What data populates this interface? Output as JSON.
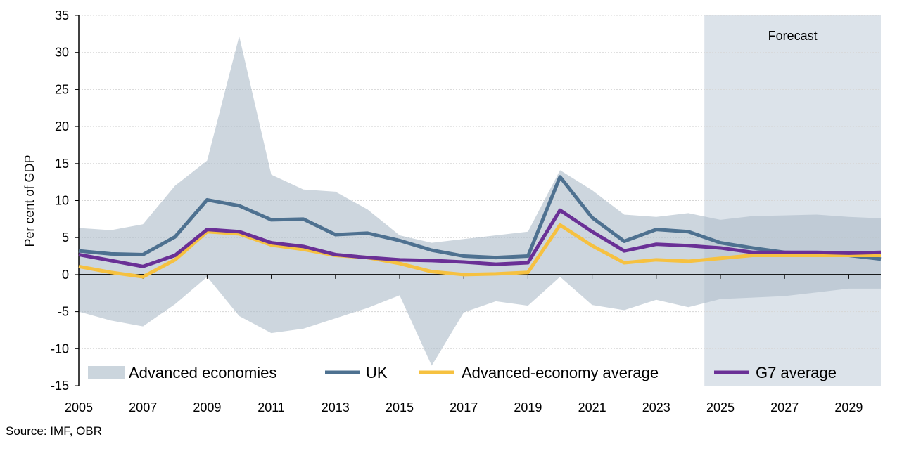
{
  "chart_data": {
    "type": "line",
    "title": "",
    "xlabel": "",
    "ylabel": "Per cent of GDP",
    "ylim": [
      -15,
      35
    ],
    "yticks": [
      35,
      30,
      25,
      20,
      15,
      10,
      5,
      0,
      -5,
      -10,
      -15
    ],
    "xticks": [
      "2005",
      "2007",
      "2009",
      "2011",
      "2013",
      "2015",
      "2017",
      "2019",
      "2021",
      "2023",
      "2025",
      "2027",
      "2029"
    ],
    "x": [
      2005,
      2006,
      2007,
      2008,
      2009,
      2010,
      2011,
      2012,
      2013,
      2014,
      2015,
      2016,
      2017,
      2018,
      2019,
      2020,
      2021,
      2022,
      2023,
      2024,
      2025,
      2026,
      2027,
      2028,
      2029,
      2030
    ],
    "forecast": {
      "label": "Forecast",
      "start": 2024.5,
      "end": 2030
    },
    "band": {
      "name": "Advanced economies",
      "color": "#cbd5dd",
      "upper": [
        6.3,
        6.0,
        6.8,
        12.0,
        15.4,
        32.2,
        13.5,
        11.5,
        11.2,
        8.8,
        5.3,
        4.3,
        4.8,
        5.3,
        5.8,
        14.1,
        11.4,
        8.1,
        7.8,
        8.3,
        7.4,
        7.9,
        8.0,
        8.1,
        7.8,
        7.6
      ],
      "lower": [
        -5.0,
        -6.2,
        -7.0,
        -4.0,
        -0.3,
        -5.6,
        -7.9,
        -7.3,
        -5.9,
        -4.5,
        -2.8,
        -12.3,
        -5.1,
        -3.6,
        -4.2,
        -0.3,
        -4.1,
        -4.8,
        -3.4,
        -4.4,
        -3.3,
        -3.1,
        -2.9,
        -2.4,
        -1.9,
        -1.9
      ]
    },
    "series": [
      {
        "name": "UK",
        "color": "#4e7190",
        "values": [
          3.2,
          2.8,
          2.7,
          5.1,
          10.1,
          9.3,
          7.4,
          7.5,
          5.4,
          5.6,
          4.6,
          3.3,
          2.5,
          2.3,
          2.5,
          13.2,
          7.7,
          4.5,
          6.1,
          5.8,
          4.3,
          3.6,
          3.0,
          2.9,
          2.6,
          2.1
        ]
      },
      {
        "name": "Advanced-economy average",
        "color": "#f6c140",
        "values": [
          1.1,
          0.3,
          -0.3,
          2.0,
          5.8,
          5.5,
          4.0,
          3.4,
          2.6,
          2.3,
          1.5,
          0.4,
          0.0,
          0.1,
          0.3,
          6.7,
          3.9,
          1.6,
          2.0,
          1.8,
          2.2,
          2.6,
          2.6,
          2.6,
          2.6,
          2.6
        ]
      },
      {
        "name": "G7 average",
        "color": "#6a3096",
        "values": [
          2.7,
          1.9,
          1.1,
          2.6,
          6.1,
          5.8,
          4.3,
          3.8,
          2.7,
          2.3,
          2.0,
          1.9,
          1.7,
          1.4,
          1.6,
          8.7,
          5.8,
          3.2,
          4.1,
          3.9,
          3.6,
          3.0,
          3.0,
          3.0,
          2.9,
          3.0
        ]
      }
    ],
    "legend": "bottom-inside",
    "grid": true
  },
  "source": "Source: IMF, OBR"
}
